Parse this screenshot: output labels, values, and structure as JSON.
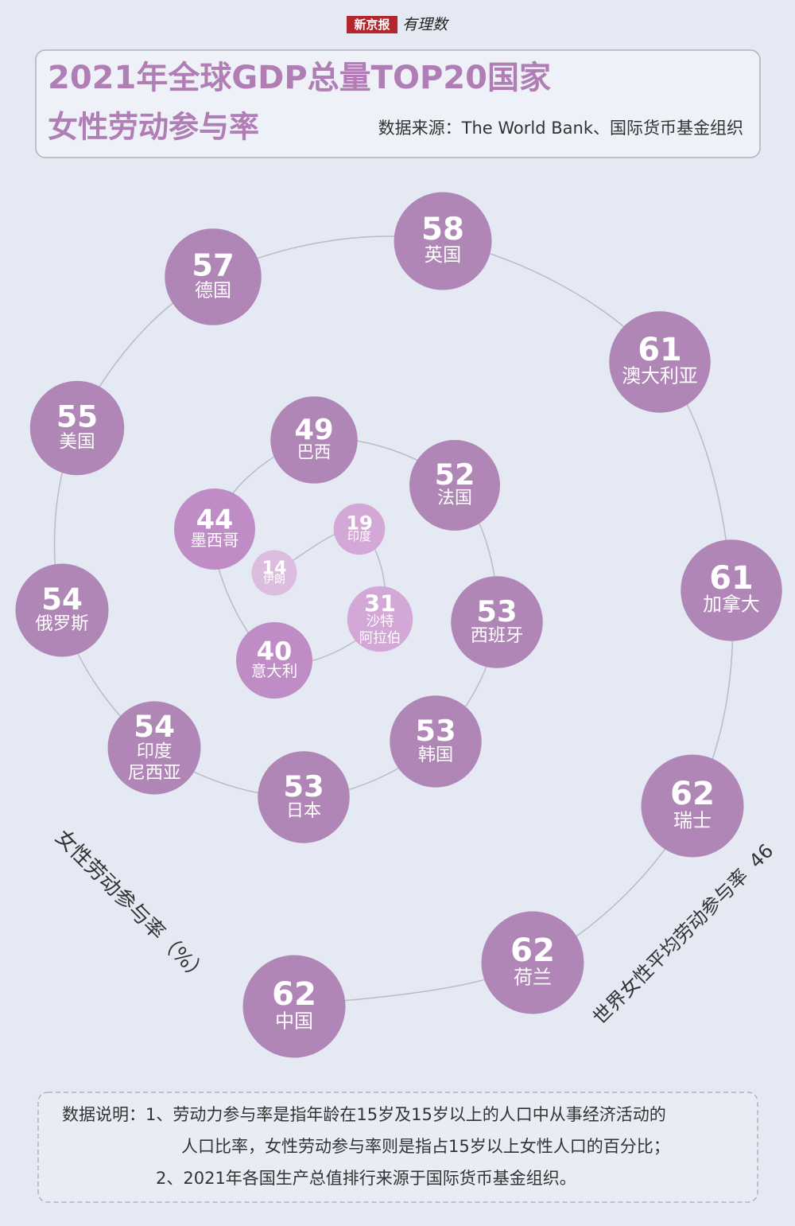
{
  "header": {
    "logo": "新京报",
    "logo_sub": "有理数"
  },
  "chart_data": {
    "type": "spiral",
    "title": "2021年全球GDP总量TOP20国家",
    "subtitle": "女性劳动参与率",
    "source": "数据来源：The World Bank、国际货币基金组织",
    "y_label": "女性劳动参与率（%）",
    "reference": {
      "label": "世界女性平均劳动参与率",
      "value": 46
    },
    "categories": [
      "伊朗",
      "印度",
      "沙特阿拉伯",
      "意大利",
      "墨西哥",
      "巴西",
      "法国",
      "西班牙",
      "韩国",
      "日本",
      "印度尼西亚",
      "俄罗斯",
      "美国",
      "德国",
      "英国",
      "澳大利亚",
      "加拿大",
      "瑞士",
      "荷兰",
      "中国"
    ],
    "values": [
      14,
      19,
      31,
      40,
      44,
      49,
      52,
      53,
      53,
      53,
      54,
      54,
      55,
      57,
      58,
      61,
      61,
      62,
      62,
      62
    ],
    "colors": [
      "#dcbde0",
      "#d3a8d7",
      "#d3a8d7",
      "#bf8cc5",
      "#bf8cc5",
      "#b086b6",
      "#b086b6",
      "#b086b6",
      "#b086b6",
      "#b086b6",
      "#b086b6",
      "#b086b6",
      "#b086b6",
      "#b086b6",
      "#b086b6",
      "#b086b6",
      "#b086b6",
      "#b086b6",
      "#b086b6",
      "#b086b6"
    ],
    "line_color": "#b9bcc4"
  },
  "notes": [
    "数据说明：1、劳动力参与率是指年龄在15岁及15岁以上的人口中从事经济活动的",
    "人口比率，女性劳动参与率则是指占15岁以上女性人口的百分比；",
    "2、2021年各国生产总值排行来源于国际货币基金组织。"
  ]
}
